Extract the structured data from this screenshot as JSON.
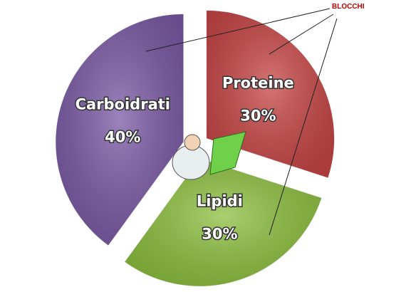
{
  "chart_data": {
    "type": "pie",
    "categories": [
      "Proteine",
      "Lipidi",
      "Carboidrati"
    ],
    "values": [
      30,
      30,
      40
    ],
    "value_labels": [
      "30%",
      "30%",
      "40%"
    ],
    "colors": [
      "#c84646",
      "#8dc03f",
      "#7b5aa6"
    ],
    "annotation": "BLOCCHI"
  }
}
